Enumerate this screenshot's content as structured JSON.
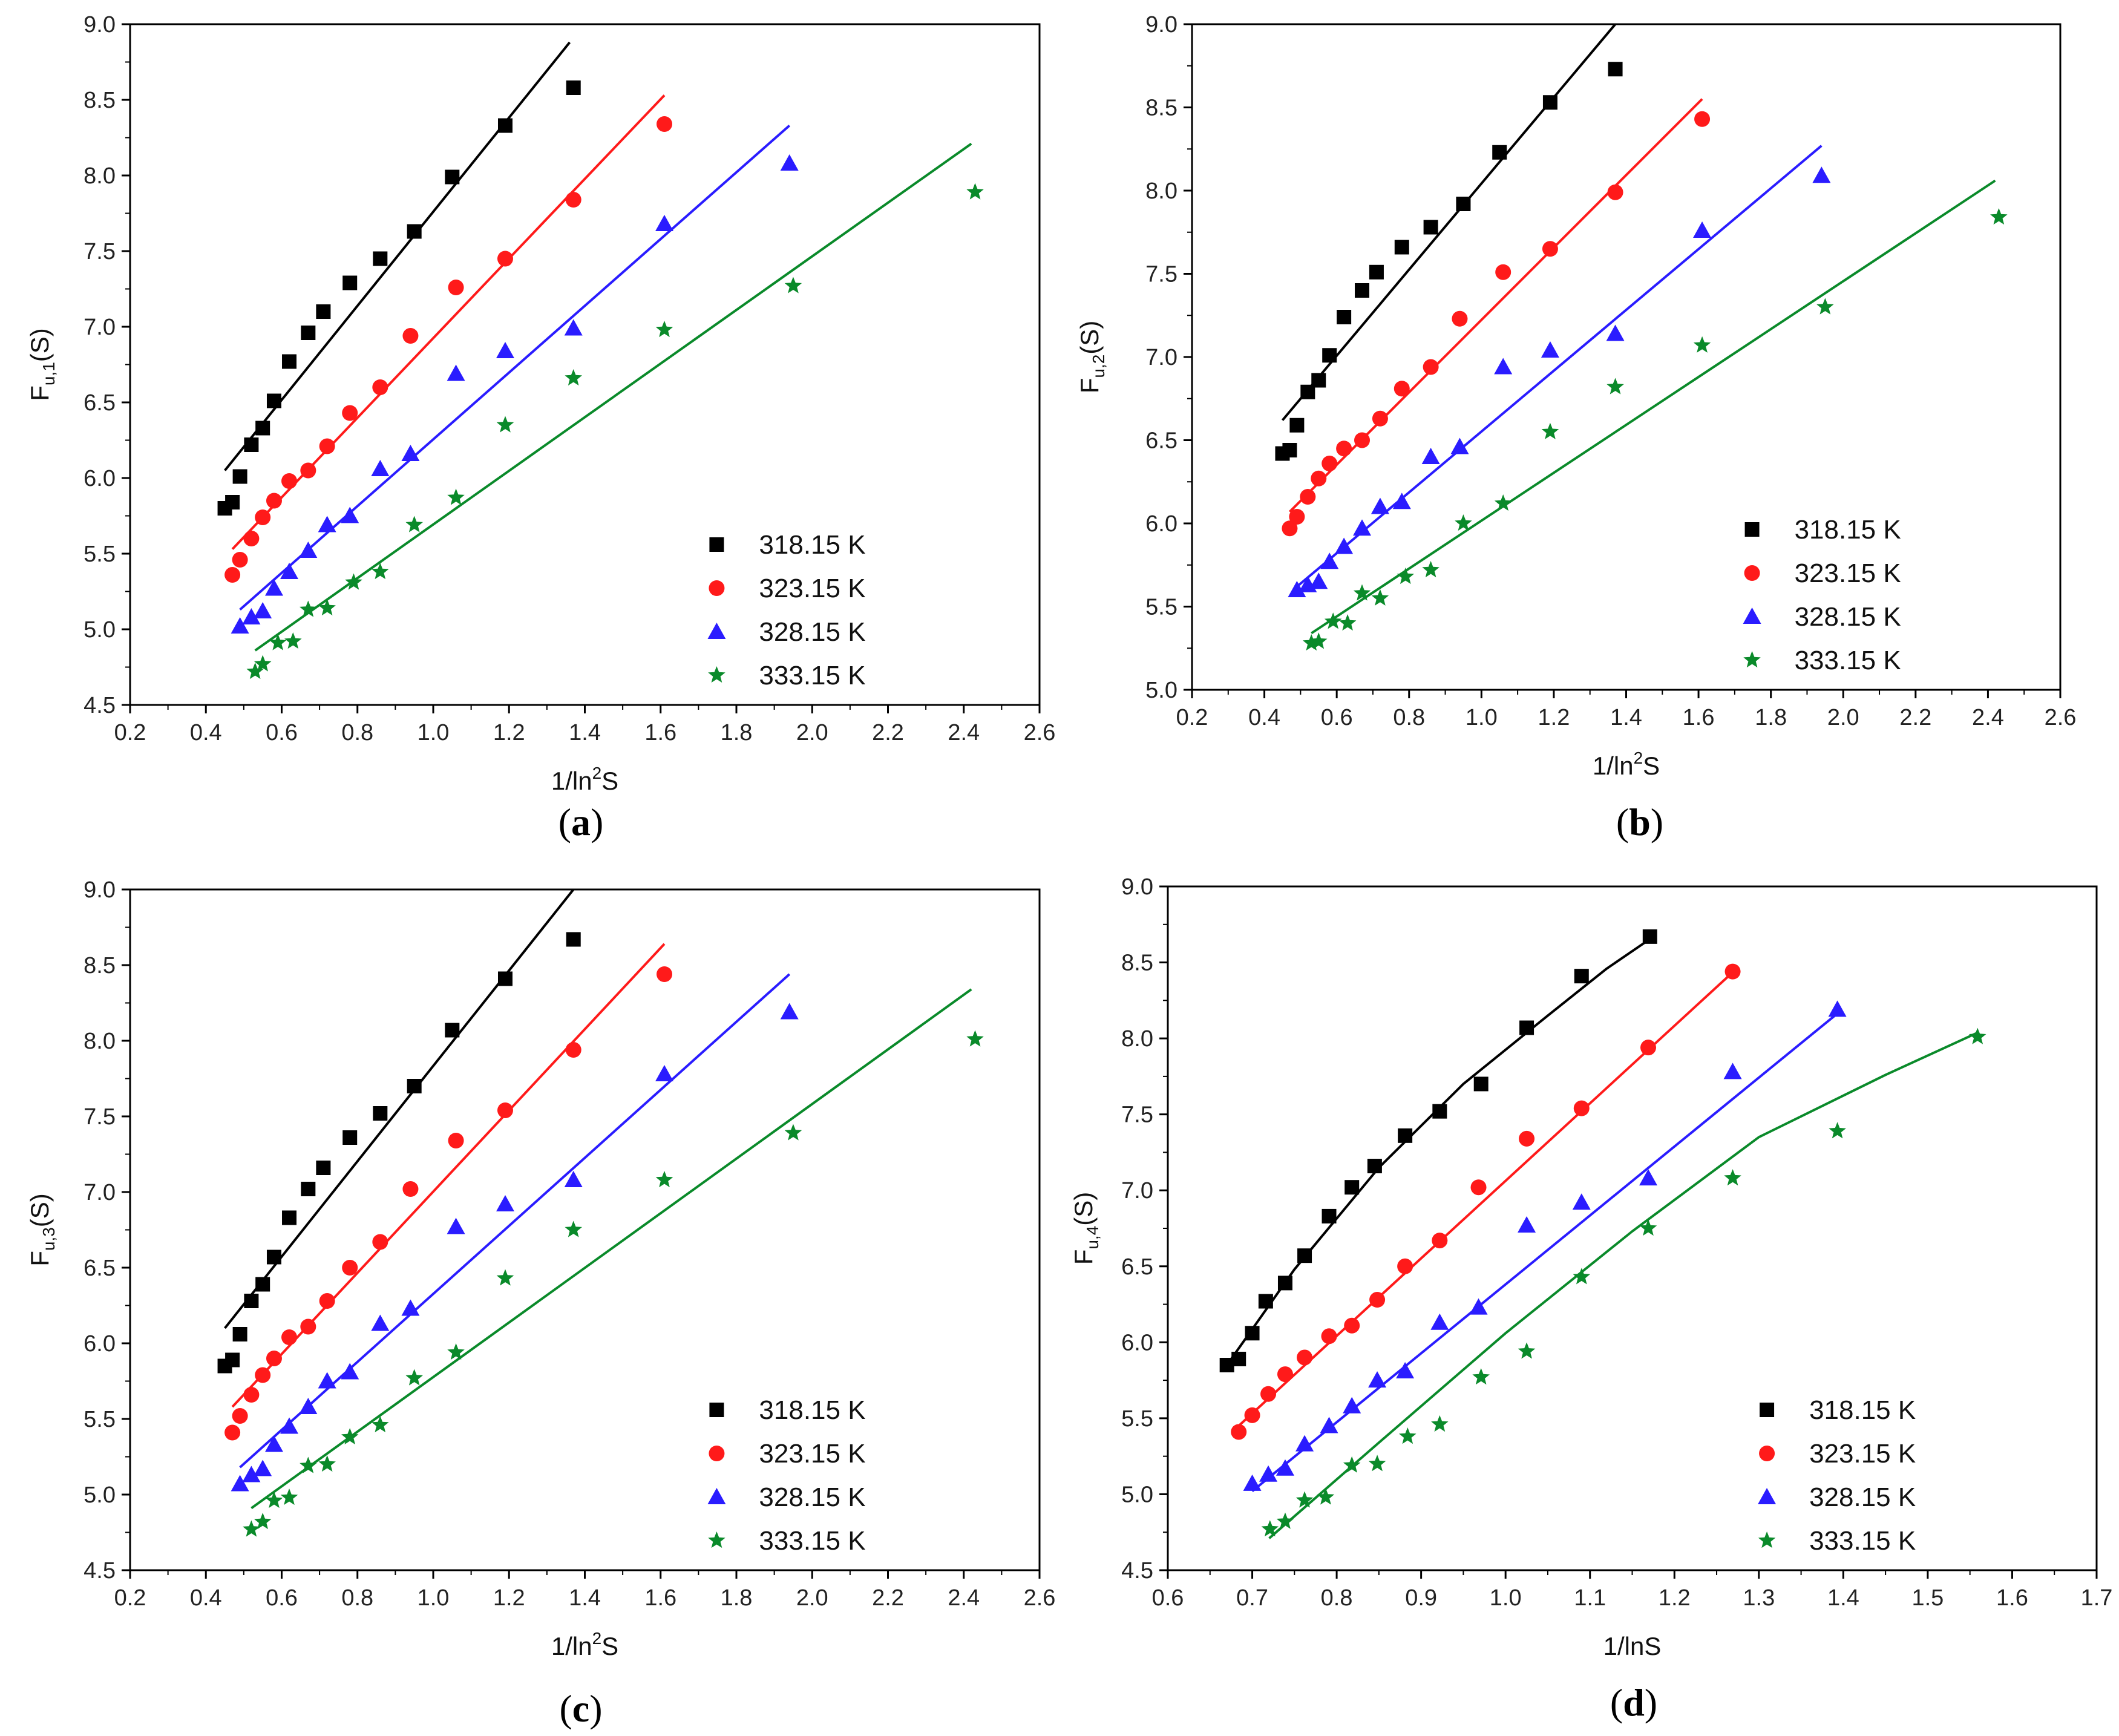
{
  "figure": {
    "colors": {
      "318.15 K": "#000000",
      "323.15 K": "#ff1a1a",
      "328.15 K": "#2a1cff",
      "333.15 K": "#0a8a2a"
    },
    "markers": {
      "318.15 K": "square",
      "323.15 K": "circle",
      "328.15 K": "triangle",
      "333.15 K": "star"
    }
  },
  "chart_data": [
    {
      "id": "a",
      "type": "scatter",
      "panel_label": "a",
      "xlabel": "1/ln²S",
      "ylabel": "F_u,1(S)",
      "ylabel_parts": {
        "main": "F",
        "sub": "u,1",
        "tail": "(S)"
      },
      "xlim": [
        0.2,
        2.6
      ],
      "ylim": [
        4.5,
        9.0
      ],
      "xticks": [
        "0.2",
        "0.4",
        "0.6",
        "0.8",
        "1.0",
        "1.2",
        "1.4",
        "1.6",
        "1.8",
        "2.0",
        "2.2",
        "2.4",
        "2.6"
      ],
      "yticks": [
        "4.5",
        "5.0",
        "5.5",
        "6.0",
        "6.5",
        "7.0",
        "7.5",
        "8.0",
        "8.5",
        "9.0"
      ],
      "legend_position": "lower-right",
      "series": [
        {
          "name": "318.15 K",
          "x": [
            0.45,
            0.47,
            0.49,
            0.52,
            0.55,
            0.58,
            0.62,
            0.67,
            0.71,
            0.78,
            0.86,
            0.95,
            1.05,
            1.19,
            1.37
          ],
          "y": [
            5.8,
            5.84,
            6.01,
            6.22,
            6.33,
            6.51,
            6.77,
            6.96,
            7.1,
            7.29,
            7.45,
            7.63,
            7.99,
            8.33,
            8.58
          ],
          "fit": {
            "kind": "line",
            "x": [
              0.45,
              1.36
            ],
            "y": [
              6.05,
              8.88
            ]
          }
        },
        {
          "name": "323.15 K",
          "x": [
            0.47,
            0.49,
            0.52,
            0.55,
            0.58,
            0.62,
            0.67,
            0.72,
            0.78,
            0.86,
            0.94,
            1.06,
            1.19,
            1.37,
            1.61
          ],
          "y": [
            5.36,
            5.46,
            5.6,
            5.74,
            5.85,
            5.98,
            6.05,
            6.21,
            6.43,
            6.6,
            6.94,
            7.26,
            7.45,
            7.84,
            8.34
          ],
          "fit": {
            "kind": "line",
            "x": [
              0.47,
              1.61
            ],
            "y": [
              5.53,
              8.53
            ]
          }
        },
        {
          "name": "328.15 K",
          "x": [
            0.49,
            0.52,
            0.55,
            0.58,
            0.62,
            0.67,
            0.72,
            0.78,
            0.86,
            0.94,
            1.06,
            1.19,
            1.37,
            1.61,
            1.94
          ],
          "y": [
            5.02,
            5.08,
            5.12,
            5.27,
            5.38,
            5.52,
            5.69,
            5.75,
            6.06,
            6.16,
            6.69,
            6.84,
            6.99,
            7.68,
            8.08
          ],
          "fit": {
            "kind": "line",
            "x": [
              0.49,
              1.94
            ],
            "y": [
              5.13,
              8.33
            ]
          }
        },
        {
          "name": "333.15 K",
          "x": [
            0.53,
            0.55,
            0.59,
            0.63,
            0.67,
            0.72,
            0.79,
            0.86,
            0.95,
            1.06,
            1.19,
            1.37,
            1.61,
            1.95,
            2.43
          ],
          "y": [
            4.72,
            4.77,
            4.91,
            4.92,
            5.13,
            5.14,
            5.31,
            5.38,
            5.69,
            5.87,
            6.35,
            6.66,
            6.98,
            7.27,
            7.89
          ],
          "fit": {
            "kind": "line",
            "x": [
              0.53,
              2.42
            ],
            "y": [
              4.86,
              8.21
            ]
          }
        }
      ]
    },
    {
      "id": "b",
      "type": "scatter",
      "panel_label": "b",
      "xlabel": "1/ln²S",
      "ylabel": "F_u,2(S)",
      "ylabel_parts": {
        "main": "F",
        "sub": "u,2",
        "tail": "(S)"
      },
      "xlim": [
        0.2,
        2.6
      ],
      "ylim": [
        5.0,
        9.0
      ],
      "xticks": [
        "0.2",
        "0.4",
        "0.6",
        "0.8",
        "1.0",
        "1.2",
        "1.4",
        "1.6",
        "1.8",
        "2.0",
        "2.2",
        "2.4",
        "2.6"
      ],
      "yticks": [
        "5.0",
        "5.5",
        "6.0",
        "6.5",
        "7.0",
        "7.5",
        "8.0",
        "8.5",
        "9.0"
      ],
      "legend_position": "lower-right",
      "series": [
        {
          "name": "318.15 K",
          "x": [
            0.45,
            0.47,
            0.49,
            0.52,
            0.55,
            0.58,
            0.62,
            0.67,
            0.71,
            0.78,
            0.86,
            0.95,
            1.05,
            1.19,
            1.37
          ],
          "y": [
            6.42,
            6.44,
            6.59,
            6.79,
            6.86,
            7.01,
            7.24,
            7.4,
            7.51,
            7.66,
            7.78,
            7.92,
            8.23,
            8.53,
            8.73
          ],
          "fit": {
            "kind": "line",
            "x": [
              0.45,
              1.37
            ],
            "y": [
              6.62,
              9.0
            ]
          }
        },
        {
          "name": "323.15 K",
          "x": [
            0.47,
            0.49,
            0.52,
            0.55,
            0.58,
            0.62,
            0.67,
            0.72,
            0.78,
            0.86,
            0.94,
            1.06,
            1.19,
            1.37,
            1.61
          ],
          "y": [
            5.97,
            6.04,
            6.16,
            6.27,
            6.36,
            6.45,
            6.5,
            6.63,
            6.81,
            6.94,
            7.23,
            7.51,
            7.65,
            7.99,
            8.43
          ],
          "fit": {
            "kind": "line",
            "x": [
              0.47,
              1.61
            ],
            "y": [
              6.07,
              8.55
            ]
          }
        },
        {
          "name": "328.15 K",
          "x": [
            0.49,
            0.52,
            0.55,
            0.58,
            0.62,
            0.67,
            0.72,
            0.78,
            0.86,
            0.94,
            1.06,
            1.19,
            1.37,
            1.61,
            1.94
          ],
          "y": [
            5.6,
            5.63,
            5.65,
            5.77,
            5.86,
            5.97,
            6.1,
            6.13,
            6.4,
            6.46,
            6.94,
            7.04,
            7.14,
            7.76,
            8.09
          ],
          "fit": {
            "kind": "line",
            "x": [
              0.49,
              1.94
            ],
            "y": [
              5.62,
              8.27
            ]
          }
        },
        {
          "name": "333.15 K",
          "x": [
            0.53,
            0.55,
            0.59,
            0.63,
            0.67,
            0.72,
            0.79,
            0.86,
            0.95,
            1.06,
            1.19,
            1.37,
            1.61,
            1.95,
            2.43
          ],
          "y": [
            5.28,
            5.29,
            5.41,
            5.4,
            5.58,
            5.55,
            5.68,
            5.72,
            6.0,
            6.12,
            6.55,
            6.82,
            7.07,
            7.3,
            7.84
          ],
          "fit": {
            "kind": "line",
            "x": [
              0.53,
              2.42
            ],
            "y": [
              5.34,
              8.06
            ]
          }
        }
      ]
    },
    {
      "id": "c",
      "type": "scatter",
      "panel_label": "c",
      "xlabel": "1/ln²S",
      "ylabel": "F_u,3(S)",
      "ylabel_parts": {
        "main": "F",
        "sub": "u,3",
        "tail": "(S)"
      },
      "xlim": [
        0.2,
        2.6
      ],
      "ylim": [
        4.5,
        9.0
      ],
      "xticks": [
        "0.2",
        "0.4",
        "0.6",
        "0.8",
        "1.0",
        "1.2",
        "1.4",
        "1.6",
        "1.8",
        "2.0",
        "2.2",
        "2.4",
        "2.6"
      ],
      "yticks": [
        "4.5",
        "5.0",
        "5.5",
        "6.0",
        "6.5",
        "7.0",
        "7.5",
        "8.0",
        "8.5",
        "9.0"
      ],
      "legend_position": "lower-right",
      "series": [
        {
          "name": "318.15 K",
          "x": [
            0.45,
            0.47,
            0.49,
            0.52,
            0.55,
            0.58,
            0.62,
            0.67,
            0.71,
            0.78,
            0.86,
            0.95,
            1.05,
            1.19,
            1.37
          ],
          "y": [
            5.85,
            5.89,
            6.06,
            6.28,
            6.39,
            6.57,
            6.83,
            7.02,
            7.16,
            7.36,
            7.52,
            7.7,
            8.07,
            8.41,
            8.67
          ],
          "fit": {
            "kind": "line",
            "x": [
              0.45,
              1.37
            ],
            "y": [
              6.1,
              9.0
            ]
          }
        },
        {
          "name": "323.15 K",
          "x": [
            0.47,
            0.49,
            0.52,
            0.55,
            0.58,
            0.62,
            0.67,
            0.72,
            0.78,
            0.86,
            0.94,
            1.06,
            1.19,
            1.37,
            1.61
          ],
          "y": [
            5.41,
            5.52,
            5.66,
            5.79,
            5.9,
            6.04,
            6.11,
            6.28,
            6.5,
            6.67,
            7.02,
            7.34,
            7.54,
            7.94,
            8.44
          ],
          "fit": {
            "kind": "line",
            "x": [
              0.47,
              1.61
            ],
            "y": [
              5.58,
              8.64
            ]
          }
        },
        {
          "name": "328.15 K",
          "x": [
            0.49,
            0.52,
            0.55,
            0.58,
            0.62,
            0.67,
            0.72,
            0.78,
            0.86,
            0.94,
            1.06,
            1.19,
            1.37,
            1.61,
            1.94
          ],
          "y": [
            5.07,
            5.13,
            5.17,
            5.33,
            5.45,
            5.58,
            5.75,
            5.81,
            6.13,
            6.23,
            6.77,
            6.92,
            7.08,
            7.78,
            8.19
          ],
          "fit": {
            "kind": "line",
            "x": [
              0.49,
              1.94
            ],
            "y": [
              5.18,
              8.44
            ]
          }
        },
        {
          "name": "333.15 K",
          "x": [
            0.52,
            0.55,
            0.58,
            0.62,
            0.67,
            0.72,
            0.78,
            0.86,
            0.95,
            1.06,
            1.19,
            1.37,
            1.61,
            1.95,
            2.43
          ],
          "y": [
            4.77,
            4.82,
            4.96,
            4.98,
            5.19,
            5.2,
            5.38,
            5.46,
            5.77,
            5.94,
            6.43,
            6.75,
            7.08,
            7.39,
            8.01
          ],
          "fit": {
            "kind": "line",
            "x": [
              0.52,
              2.42
            ],
            "y": [
              4.91,
              8.34
            ]
          }
        }
      ]
    },
    {
      "id": "d",
      "type": "scatter",
      "panel_label": "d",
      "xlabel": "1/lnS",
      "ylabel": "F_u,4(S)",
      "ylabel_parts": {
        "main": "F",
        "sub": "u,4",
        "tail": "(S)"
      },
      "xlim": [
        0.6,
        1.7
      ],
      "ylim": [
        4.5,
        9.0
      ],
      "xticks": [
        "0.6",
        "0.7",
        "0.8",
        "0.9",
        "1.0",
        "1.1",
        "1.2",
        "1.3",
        "1.4",
        "1.5",
        "1.6",
        "1.7"
      ],
      "yticks": [
        "4.5",
        "5.0",
        "5.5",
        "6.0",
        "6.5",
        "7.0",
        "7.5",
        "8.0",
        "8.5",
        "9.0"
      ],
      "legend_position": "lower-right",
      "series": [
        {
          "name": "318.15 K",
          "x": [
            0.67,
            0.684,
            0.7,
            0.716,
            0.739,
            0.762,
            0.791,
            0.818,
            0.845,
            0.881,
            0.922,
            0.971,
            1.025,
            1.09,
            1.171
          ],
          "y": [
            5.85,
            5.89,
            6.06,
            6.27,
            6.39,
            6.57,
            6.83,
            7.02,
            7.16,
            7.36,
            7.52,
            7.7,
            8.07,
            8.41,
            8.67
          ],
          "fit": {
            "kind": "curve",
            "x": [
              0.67,
              0.75,
              0.85,
              0.95,
              1.05,
              1.12,
              1.17
            ],
            "y": [
              5.85,
              6.48,
              7.15,
              7.7,
              8.15,
              8.46,
              8.65
            ]
          }
        },
        {
          "name": "323.15 K",
          "x": [
            0.684,
            0.7,
            0.719,
            0.739,
            0.762,
            0.791,
            0.818,
            0.848,
            0.881,
            0.922,
            0.968,
            1.025,
            1.09,
            1.169,
            1.269
          ],
          "y": [
            5.41,
            5.52,
            5.66,
            5.79,
            5.9,
            6.04,
            6.11,
            6.28,
            6.5,
            6.67,
            7.02,
            7.34,
            7.54,
            7.94,
            8.44
          ],
          "fit": {
            "kind": "line",
            "x": [
              0.684,
              1.268
            ],
            "y": [
              5.45,
              8.43
            ]
          }
        },
        {
          "name": "328.15 K",
          "x": [
            0.7,
            0.719,
            0.739,
            0.762,
            0.791,
            0.818,
            0.848,
            0.881,
            0.922,
            0.968,
            1.025,
            1.09,
            1.169,
            1.269,
            1.393
          ],
          "y": [
            5.07,
            5.13,
            5.17,
            5.33,
            5.45,
            5.58,
            5.75,
            5.81,
            6.13,
            6.23,
            6.77,
            6.92,
            7.08,
            7.78,
            8.19
          ],
          "fit": {
            "kind": "line",
            "x": [
              0.7,
              1.39
            ],
            "y": [
              5.02,
              8.15
            ]
          }
        },
        {
          "name": "333.15 K",
          "x": [
            0.721,
            0.739,
            0.762,
            0.787,
            0.818,
            0.848,
            0.884,
            0.922,
            0.971,
            1.025,
            1.09,
            1.169,
            1.269,
            1.393,
            1.559
          ],
          "y": [
            4.77,
            4.82,
            4.96,
            4.98,
            5.19,
            5.2,
            5.38,
            5.46,
            5.77,
            5.94,
            6.43,
            6.75,
            7.08,
            7.39,
            8.01
          ],
          "fit": {
            "kind": "curve",
            "x": [
              0.72,
              0.85,
              1.0,
              1.15,
              1.3,
              1.45,
              1.56
            ],
            "y": [
              4.71,
              5.34,
              6.06,
              6.73,
              7.35,
              7.76,
              8.04
            ]
          }
        }
      ]
    }
  ]
}
